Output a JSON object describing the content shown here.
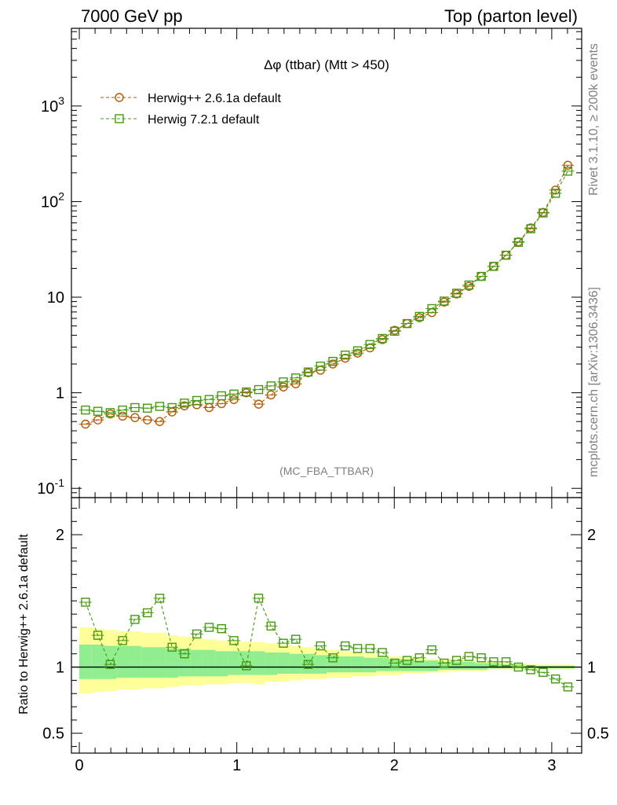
{
  "header": {
    "left": "7000 GeV pp",
    "right": "Top (parton level)"
  },
  "side_labels": {
    "rivet": "Rivet 3.1.10, ≥ 200k events",
    "source": "mcplots.cern.ch [arXiv:1306.3436]"
  },
  "analysis_tag": "(MC_FBA_TTBAR)",
  "colors": {
    "herwigpp": "#b35900",
    "herwig7": "#449911",
    "band_inner": "#90ee90",
    "band_outer": "#ffff99",
    "reference_line": "#000000"
  },
  "chart_data": [
    {
      "type": "line",
      "title": "Δφ (ttbar) (Mtt > 450)",
      "xlabel": "",
      "ylabel": "",
      "yscale": "log",
      "xlim": [
        -0.05,
        3.19
      ],
      "ylim": [
        0.08,
        6500
      ],
      "grid": false,
      "legend_position": "top-left",
      "y_tick_labels": [
        "10^-1",
        "1",
        "10",
        "10^2",
        "10^3"
      ],
      "x": [
        0.0393,
        0.1178,
        0.1963,
        0.2749,
        0.3534,
        0.432,
        0.5105,
        0.589,
        0.6676,
        0.7461,
        0.8247,
        0.9032,
        0.9817,
        1.0603,
        1.1388,
        1.2174,
        1.2959,
        1.3744,
        1.453,
        1.5315,
        1.6101,
        1.6886,
        1.7671,
        1.8457,
        1.9242,
        2.0028,
        2.0813,
        2.1598,
        2.2384,
        2.3169,
        2.3955,
        2.474,
        2.5525,
        2.6311,
        2.7096,
        2.7882,
        2.8667,
        2.9452,
        3.0238,
        3.1023
      ],
      "series": [
        {
          "name": "Herwig++ 2.6.1a default",
          "marker": "circle",
          "values": [
            0.47,
            0.52,
            0.6,
            0.57,
            0.55,
            0.52,
            0.5,
            0.63,
            0.73,
            0.75,
            0.7,
            0.77,
            0.85,
            1.0,
            0.76,
            0.95,
            1.15,
            1.24,
            1.62,
            1.72,
            2.0,
            2.3,
            2.6,
            2.95,
            3.6,
            4.5,
            5.3,
            6.1,
            6.9,
            8.9,
            10.8,
            13.0,
            16.5,
            21.0,
            27.5,
            38.0,
            53.0,
            77.0,
            132.0,
            240.0
          ]
        },
        {
          "name": "Herwig 7.2.1 default",
          "marker": "square",
          "values": [
            0.66,
            0.64,
            0.62,
            0.66,
            0.7,
            0.69,
            0.72,
            0.7,
            0.78,
            0.83,
            0.85,
            0.93,
            0.97,
            1.02,
            1.08,
            1.18,
            1.3,
            1.43,
            1.65,
            1.9,
            2.13,
            2.48,
            2.75,
            3.2,
            3.7,
            4.4,
            5.3,
            6.3,
            7.6,
            9.1,
            11.0,
            13.4,
            16.5,
            21.0,
            27.5,
            37.5,
            52.0,
            76.0,
            122.0,
            208.0
          ]
        }
      ]
    },
    {
      "type": "line",
      "title": "",
      "xlabel": "",
      "ylabel": "Ratio to Herwig++ 2.6.1a default",
      "yscale": "linear",
      "xlim": [
        -0.05,
        3.19
      ],
      "ylim": [
        0.35,
        2.28
      ],
      "grid": false,
      "x_tick_labels": [
        "0",
        "1",
        "2",
        "3"
      ],
      "y_tick_labels": [
        "0.5",
        "1",
        "2"
      ],
      "reference_value": 1.0,
      "x": [
        0.0393,
        0.1178,
        0.1963,
        0.2749,
        0.3534,
        0.432,
        0.5105,
        0.589,
        0.6676,
        0.7461,
        0.8247,
        0.9032,
        0.9817,
        1.0603,
        1.1388,
        1.2174,
        1.2959,
        1.3744,
        1.453,
        1.5315,
        1.6101,
        1.6886,
        1.7671,
        1.8457,
        1.9242,
        2.0028,
        2.0813,
        2.1598,
        2.2384,
        2.3169,
        2.3955,
        2.474,
        2.5525,
        2.6311,
        2.7096,
        2.7882,
        2.8667,
        2.9452,
        3.0238,
        3.1023
      ],
      "series": [
        {
          "name": "Herwig 7.2.1 default",
          "marker": "square",
          "values": [
            1.49,
            1.24,
            1.02,
            1.2,
            1.36,
            1.41,
            1.52,
            1.15,
            1.1,
            1.25,
            1.3,
            1.29,
            1.2,
            1.01,
            1.52,
            1.31,
            1.18,
            1.21,
            1.02,
            1.16,
            1.07,
            1.16,
            1.14,
            1.14,
            1.11,
            1.03,
            1.05,
            1.07,
            1.13,
            1.03,
            1.05,
            1.08,
            1.07,
            1.04,
            1.04,
            1.0,
            0.98,
            0.96,
            0.91,
            0.85
          ]
        }
      ],
      "uncertainty_band": {
        "outer_up": [
          1.3,
          1.29,
          1.28,
          1.27,
          1.27,
          1.26,
          1.26,
          1.24,
          1.23,
          1.22,
          1.21,
          1.2,
          1.2,
          1.19,
          1.19,
          1.18,
          1.17,
          1.16,
          1.15,
          1.14,
          1.13,
          1.12,
          1.11,
          1.1,
          1.09,
          1.08,
          1.08,
          1.07,
          1.06,
          1.06,
          1.05,
          1.05,
          1.04,
          1.04,
          1.03,
          1.03,
          1.02,
          1.02,
          1.02,
          1.02
        ],
        "outer_down": [
          0.8,
          0.81,
          0.82,
          0.83,
          0.83,
          0.84,
          0.84,
          0.85,
          0.86,
          0.86,
          0.87,
          0.87,
          0.88,
          0.88,
          0.87,
          0.89,
          0.89,
          0.9,
          0.91,
          0.91,
          0.92,
          0.92,
          0.93,
          0.93,
          0.94,
          0.94,
          0.95,
          0.95,
          0.96,
          0.96,
          0.97,
          0.97,
          0.97,
          0.98,
          0.98,
          0.98,
          0.98,
          0.98,
          0.98,
          0.98
        ],
        "inner_up": [
          1.17,
          1.17,
          1.16,
          1.16,
          1.16,
          1.15,
          1.15,
          1.14,
          1.14,
          1.13,
          1.13,
          1.12,
          1.12,
          1.12,
          1.12,
          1.11,
          1.11,
          1.1,
          1.1,
          1.09,
          1.09,
          1.08,
          1.08,
          1.07,
          1.07,
          1.06,
          1.06,
          1.05,
          1.05,
          1.04,
          1.04,
          1.04,
          1.03,
          1.03,
          1.02,
          1.02,
          1.01,
          1.01,
          1.01,
          1.01
        ],
        "inner_down": [
          0.91,
          0.91,
          0.91,
          0.92,
          0.92,
          0.92,
          0.92,
          0.92,
          0.93,
          0.93,
          0.93,
          0.93,
          0.94,
          0.94,
          0.94,
          0.94,
          0.95,
          0.95,
          0.95,
          0.95,
          0.96,
          0.96,
          0.96,
          0.96,
          0.97,
          0.97,
          0.97,
          0.97,
          0.97,
          0.98,
          0.98,
          0.98,
          0.98,
          0.99,
          0.99,
          0.99,
          0.99,
          0.99,
          0.99,
          0.99
        ]
      }
    }
  ]
}
